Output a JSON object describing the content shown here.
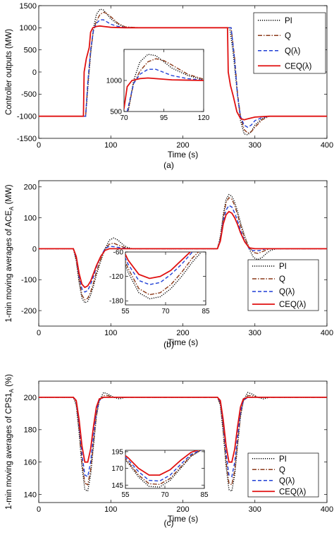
{
  "figure": {
    "panels": [
      {
        "caption": "(a)"
      },
      {
        "caption": "(b)"
      },
      {
        "caption": "(c)"
      }
    ]
  },
  "legend_entries": [
    "PI",
    "Q",
    "Q(λ)",
    "CEQ(λ)"
  ],
  "series_styles": [
    {
      "name": "PI",
      "color": "#000000",
      "dash": "dotted"
    },
    {
      "name": "Q",
      "color": "#8b3a1a",
      "dash": "dashdot"
    },
    {
      "name": "Q(λ)",
      "color": "#1f3fd6",
      "dash": "dashed"
    },
    {
      "name": "CEQ(λ)",
      "color": "#e01010",
      "dash": "solid"
    }
  ],
  "chart_data": [
    {
      "type": "line",
      "caption": "(a)",
      "xlabel": "Time (s)",
      "ylabel": "Controller outputs (MW)",
      "xlim": [
        0,
        400
      ],
      "ylim": [
        -1500,
        1500
      ],
      "xticks": [
        0,
        100,
        200,
        300,
        400
      ],
      "yticks": [
        -1500,
        -1000,
        -500,
        0,
        500,
        1000,
        1500
      ],
      "legend": "top-right",
      "series": [
        {
          "name": "PI",
          "x": [
            0,
            60,
            65,
            68,
            72,
            76,
            80,
            85,
            90,
            95,
            100,
            110,
            120,
            140,
            180,
            230,
            260,
            265,
            270,
            275,
            280,
            285,
            290,
            295,
            300,
            310,
            320,
            400
          ],
          "y": [
            -1000,
            -1000,
            -1000,
            -400,
            400,
            1000,
            1300,
            1420,
            1400,
            1300,
            1200,
            1080,
            1010,
            1000,
            1000,
            1000,
            1000,
            1000,
            400,
            -400,
            -1100,
            -1400,
            -1420,
            -1350,
            -1200,
            -1050,
            -1000,
            -1000
          ]
        },
        {
          "name": "Q",
          "x": [
            0,
            60,
            65,
            68,
            72,
            76,
            80,
            85,
            90,
            95,
            100,
            110,
            120,
            140,
            180,
            230,
            262,
            267,
            272,
            276,
            280,
            285,
            290,
            295,
            300,
            310,
            320,
            400
          ],
          "y": [
            -1000,
            -1000,
            -1000,
            -300,
            450,
            950,
            1150,
            1300,
            1350,
            1320,
            1250,
            1100,
            1020,
            1000,
            1000,
            1000,
            1000,
            1000,
            300,
            -500,
            -1000,
            -1300,
            -1380,
            -1350,
            -1250,
            -1080,
            -1000,
            -1000
          ]
        },
        {
          "name": "Q(λ)",
          "x": [
            0,
            60,
            65,
            68,
            72,
            76,
            80,
            85,
            90,
            95,
            100,
            110,
            120,
            140,
            180,
            230,
            262,
            267,
            272,
            276,
            280,
            285,
            290,
            295,
            300,
            310,
            320,
            400
          ],
          "y": [
            -1000,
            -1000,
            -1000,
            -250,
            500,
            950,
            1100,
            1180,
            1180,
            1130,
            1080,
            1030,
            1005,
            1000,
            1000,
            1000,
            1000,
            1000,
            250,
            -550,
            -1000,
            -1200,
            -1250,
            -1200,
            -1100,
            -1030,
            -1000,
            -1000
          ]
        },
        {
          "name": "CEQ(λ)",
          "x": [
            0,
            62,
            63,
            66,
            70,
            72,
            75,
            80,
            85,
            90,
            100,
            120,
            180,
            230,
            262,
            263,
            266,
            270,
            275,
            280,
            285,
            290,
            300,
            320,
            400
          ],
          "y": [
            -1000,
            -1000,
            0,
            300,
            550,
            900,
            1000,
            1030,
            1040,
            1030,
            1010,
            1000,
            1000,
            1000,
            1000,
            0,
            -300,
            -550,
            -900,
            -1050,
            -1080,
            -1060,
            -1020,
            -1000,
            -1000
          ]
        }
      ],
      "inset": {
        "xlim": [
          70,
          120
        ],
        "ylim": [
          500,
          1500
        ],
        "xticks": [
          70,
          95,
          120
        ],
        "yticks": [
          500,
          1000
        ]
      }
    },
    {
      "type": "line",
      "caption": "(b)",
      "xlabel": "Time (s)",
      "ylabel": "1-min moving averages of ACE",
      "ylabel_subscript": "A",
      "ylabel_unit": "(MW)",
      "xlim": [
        0,
        400
      ],
      "ylim": [
        -250,
        220
      ],
      "xticks": [
        0,
        100,
        200,
        300,
        400
      ],
      "yticks": [
        -200,
        -100,
        0,
        100,
        200
      ],
      "legend": "inset-right",
      "series": [
        {
          "name": "PI",
          "x": [
            0,
            48,
            52,
            56,
            60,
            64,
            68,
            72,
            76,
            80,
            86,
            92,
            98,
            104,
            110,
            116,
            122,
            130,
            140,
            230,
            248,
            252,
            256,
            260,
            264,
            268,
            272,
            276,
            280,
            286,
            292,
            298,
            304,
            310,
            316,
            322,
            330,
            400
          ],
          "y": [
            0,
            0,
            -40,
            -110,
            -160,
            -175,
            -170,
            -150,
            -120,
            -85,
            -40,
            0,
            28,
            35,
            28,
            15,
            5,
            0,
            0,
            0,
            0,
            40,
            110,
            160,
            175,
            170,
            150,
            120,
            85,
            40,
            0,
            -28,
            -35,
            -28,
            -15,
            -5,
            0,
            0
          ]
        },
        {
          "name": "Q",
          "x": [
            0,
            48,
            52,
            56,
            60,
            64,
            68,
            72,
            76,
            80,
            86,
            92,
            98,
            104,
            110,
            118,
            126,
            140,
            230,
            248,
            252,
            256,
            260,
            264,
            268,
            272,
            276,
            280,
            286,
            292,
            298,
            304,
            312,
            320,
            400
          ],
          "y": [
            0,
            0,
            -35,
            -100,
            -150,
            -165,
            -160,
            -140,
            -110,
            -75,
            -35,
            0,
            15,
            18,
            12,
            5,
            0,
            0,
            0,
            0,
            35,
            100,
            150,
            165,
            160,
            140,
            110,
            75,
            35,
            5,
            -12,
            -15,
            -8,
            0,
            0
          ]
        },
        {
          "name": "Q(λ)",
          "x": [
            0,
            48,
            52,
            56,
            60,
            64,
            68,
            72,
            76,
            80,
            86,
            92,
            98,
            106,
            116,
            130,
            230,
            248,
            252,
            256,
            260,
            264,
            268,
            272,
            276,
            280,
            286,
            292,
            298,
            306,
            316,
            400
          ],
          "y": [
            0,
            0,
            -30,
            -90,
            -130,
            -140,
            -135,
            -115,
            -90,
            -60,
            -25,
            0,
            8,
            6,
            2,
            0,
            0,
            0,
            30,
            90,
            125,
            140,
            135,
            115,
            90,
            60,
            25,
            0,
            -6,
            -6,
            0,
            0
          ]
        },
        {
          "name": "CEQ(λ)",
          "x": [
            0,
            48,
            52,
            56,
            60,
            64,
            68,
            72,
            76,
            80,
            86,
            92,
            98,
            108,
            120,
            230,
            248,
            252,
            256,
            260,
            264,
            268,
            272,
            276,
            280,
            286,
            292,
            300,
            312,
            400
          ],
          "y": [
            0,
            0,
            -25,
            -80,
            -115,
            -125,
            -120,
            -105,
            -80,
            -55,
            -25,
            -5,
            0,
            0,
            0,
            0,
            0,
            25,
            80,
            110,
            120,
            115,
            100,
            78,
            52,
            22,
            3,
            0,
            0,
            0
          ]
        }
      ],
      "inset": {
        "xlim": [
          55,
          85
        ],
        "ylim": [
          -190,
          -60
        ],
        "xticks": [
          55,
          70,
          85
        ],
        "yticks": [
          -180,
          -120,
          -60
        ]
      }
    },
    {
      "type": "line",
      "caption": "(c)",
      "xlabel": "Time (s)",
      "ylabel": "1-min moving averages of CPS1",
      "ylabel_subscript": "A",
      "ylabel_unit": "(%)",
      "xlim": [
        0,
        400
      ],
      "ylim": [
        135,
        210
      ],
      "xticks": [
        0,
        100,
        200,
        300,
        400
      ],
      "yticks": [
        140,
        160,
        180,
        200
      ],
      "legend": "inset-right",
      "series": [
        {
          "name": "PI",
          "x": [
            0,
            48,
            52,
            56,
            60,
            64,
            68,
            72,
            76,
            80,
            84,
            90,
            96,
            104,
            112,
            120,
            230,
            248,
            252,
            256,
            260,
            264,
            268,
            272,
            276,
            280,
            284,
            290,
            296,
            304,
            312,
            320,
            400
          ],
          "y": [
            200,
            200,
            195,
            178,
            157,
            143,
            142,
            152,
            170,
            188,
            198,
            203,
            202,
            200,
            199,
            200,
            200,
            200,
            195,
            178,
            157,
            143,
            142,
            152,
            170,
            188,
            198,
            203,
            202,
            200,
            199,
            200,
            200
          ]
        },
        {
          "name": "Q",
          "x": [
            0,
            48,
            52,
            56,
            60,
            64,
            68,
            72,
            76,
            80,
            84,
            90,
            96,
            104,
            112,
            230,
            248,
            252,
            256,
            260,
            264,
            268,
            272,
            276,
            280,
            284,
            290,
            296,
            304,
            400
          ],
          "y": [
            200,
            200,
            196,
            180,
            160,
            147,
            146,
            155,
            172,
            189,
            198,
            201,
            201,
            200,
            200,
            200,
            200,
            196,
            180,
            160,
            147,
            146,
            155,
            172,
            189,
            198,
            201,
            201,
            200,
            200
          ]
        },
        {
          "name": "Q(λ)",
          "x": [
            0,
            48,
            52,
            56,
            60,
            64,
            68,
            72,
            76,
            80,
            84,
            90,
            100,
            230,
            248,
            252,
            256,
            260,
            264,
            268,
            272,
            276,
            280,
            284,
            290,
            300,
            400
          ],
          "y": [
            200,
            200,
            197,
            183,
            165,
            152,
            151,
            160,
            176,
            191,
            198,
            200,
            200,
            200,
            200,
            197,
            183,
            165,
            152,
            151,
            160,
            176,
            191,
            198,
            200,
            200,
            200
          ]
        },
        {
          "name": "CEQ(λ)",
          "x": [
            0,
            48,
            52,
            56,
            60,
            64,
            68,
            72,
            76,
            80,
            84,
            90,
            100,
            230,
            248,
            252,
            256,
            260,
            264,
            268,
            272,
            276,
            280,
            284,
            290,
            300,
            400
          ],
          "y": [
            200,
            200,
            198,
            186,
            170,
            160,
            160,
            168,
            182,
            194,
            199,
            200,
            200,
            200,
            200,
            198,
            186,
            170,
            160,
            160,
            168,
            182,
            194,
            199,
            200,
            200,
            200
          ]
        }
      ],
      "inset": {
        "xlim": [
          55,
          85
        ],
        "ylim": [
          140,
          197
        ],
        "xticks": [
          55,
          70,
          85
        ],
        "yticks": [
          145,
          170,
          195
        ]
      }
    }
  ]
}
